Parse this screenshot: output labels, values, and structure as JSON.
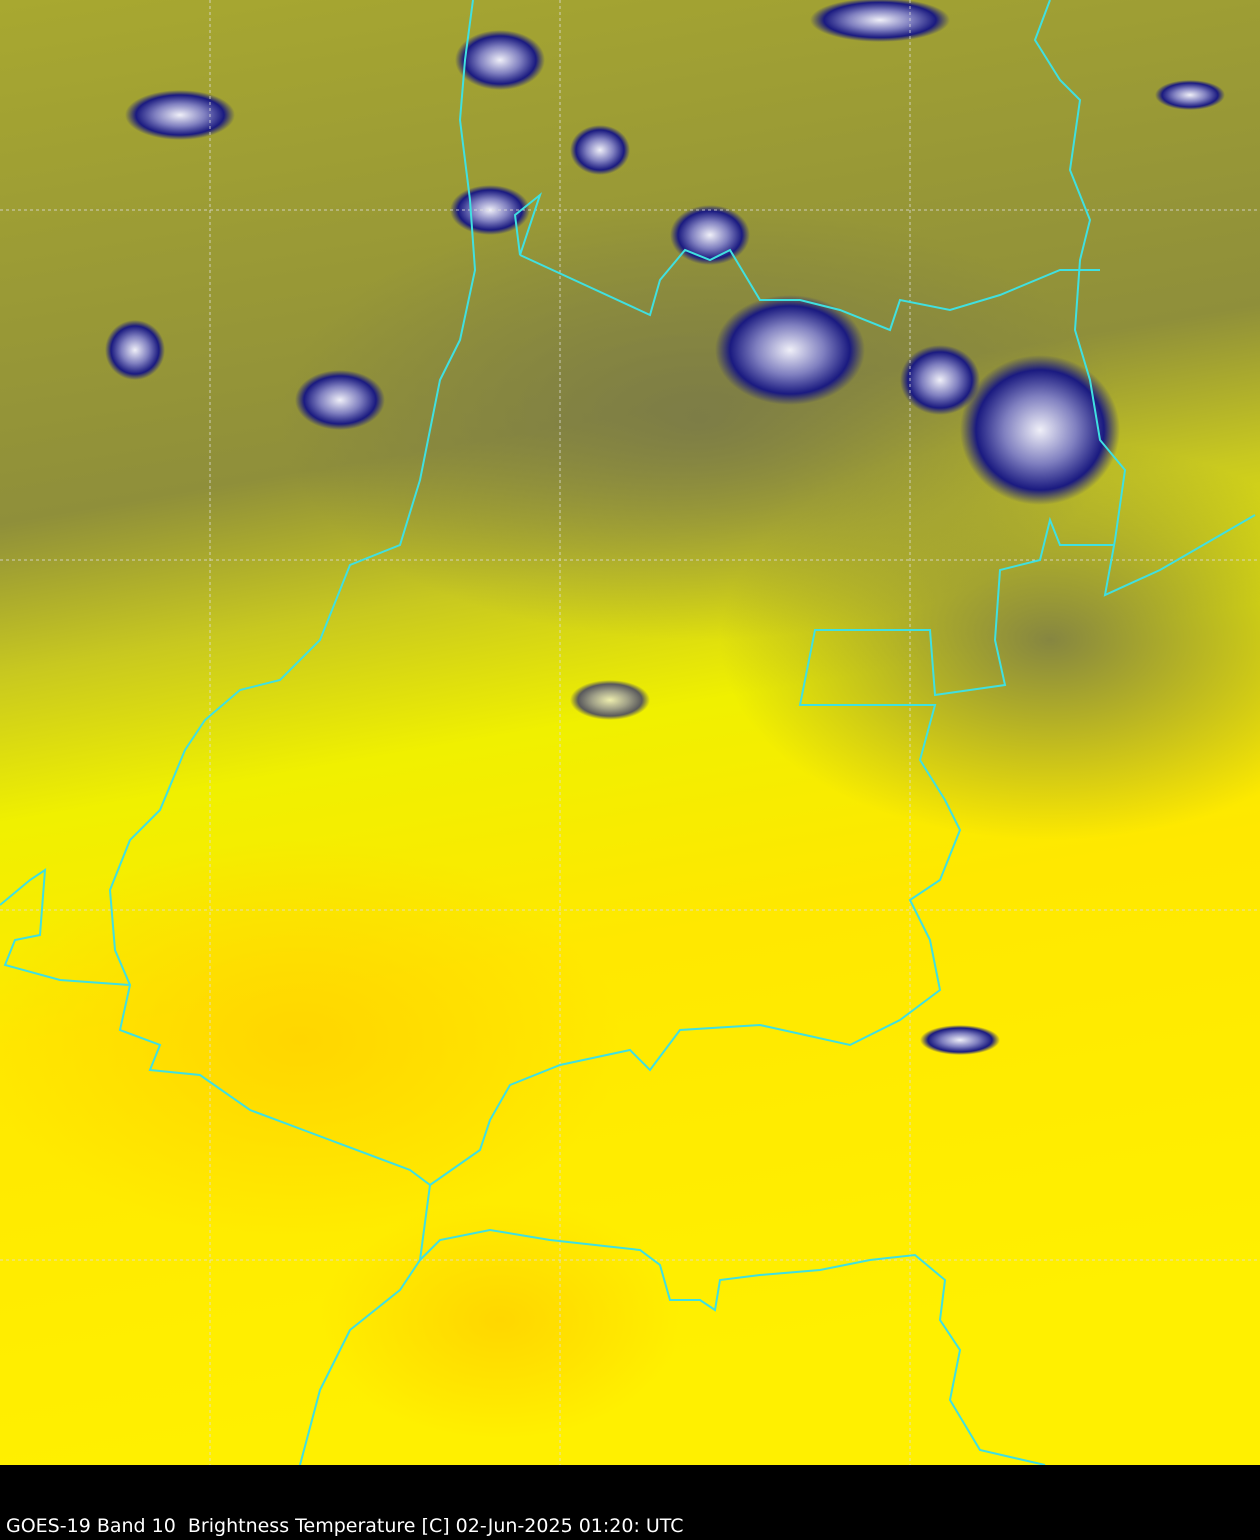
{
  "caption": "GOES-19 Band 10  Brightness Temperature [C] 02-Jun-2025 01:20: UTC",
  "colors": {
    "cold_cloud_top": "#1a1a80",
    "cold_core": "#e8e8f0",
    "mid_level": "#8a8a40",
    "warm": "#ffff00",
    "warmest": "#ffd000",
    "borders": "#40e0e0",
    "gridlines": "#dddddd"
  }
}
